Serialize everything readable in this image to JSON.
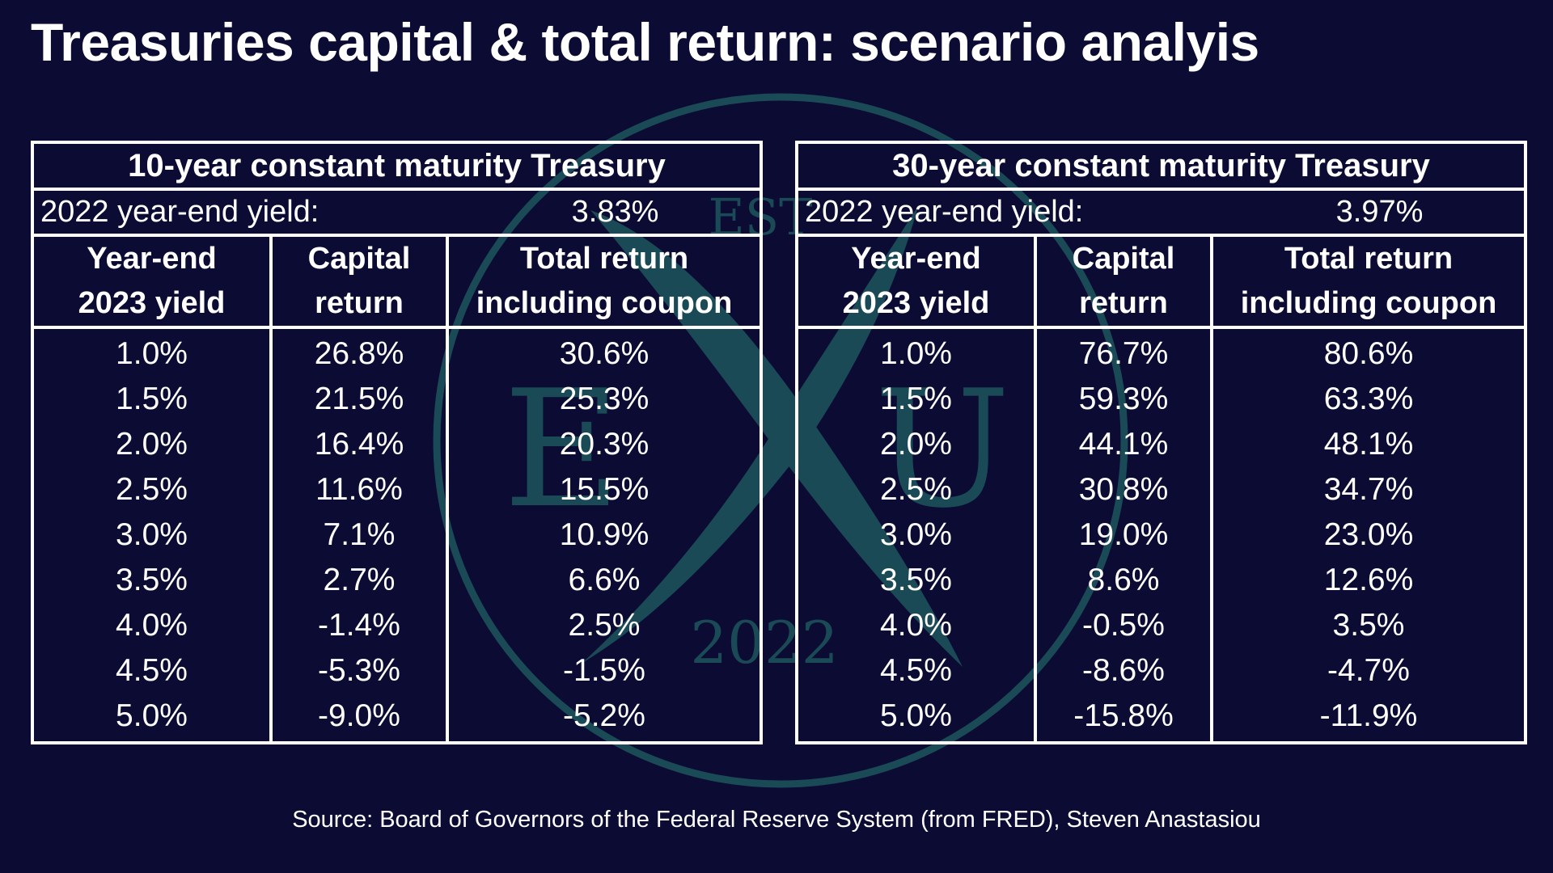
{
  "title": "Treasuries capital & total return: scenario analyis",
  "source": "Source: Board of Governors of the Federal Reserve System (from FRED), Steven Anastasiou",
  "watermark": {
    "est": "EST",
    "left_letter": "E",
    "center_letter": "X",
    "right_letter": "U",
    "year": "2022",
    "color": "#1a4a55"
  },
  "colors": {
    "background": "#0b0b33",
    "text": "#ffffff",
    "border": "#ffffff"
  },
  "tables": [
    {
      "heading": "10-year constant maturity Treasury",
      "yield_label": "2022 year-end yield:",
      "yield_value": "3.83%",
      "columns": [
        {
          "line1": "Year-end",
          "line2": "2023 yield"
        },
        {
          "line1": "Capital",
          "line2": "return"
        },
        {
          "line1": "Total return",
          "line2": "including coupon"
        }
      ],
      "rows": [
        [
          "1.0%",
          "26.8%",
          "30.6%"
        ],
        [
          "1.5%",
          "21.5%",
          "25.3%"
        ],
        [
          "2.0%",
          "16.4%",
          "20.3%"
        ],
        [
          "2.5%",
          "11.6%",
          "15.5%"
        ],
        [
          "3.0%",
          "7.1%",
          "10.9%"
        ],
        [
          "3.5%",
          "2.7%",
          "6.6%"
        ],
        [
          "4.0%",
          "-1.4%",
          "2.5%"
        ],
        [
          "4.5%",
          "-5.3%",
          "-1.5%"
        ],
        [
          "5.0%",
          "-9.0%",
          "-5.2%"
        ]
      ]
    },
    {
      "heading": "30-year constant maturity Treasury",
      "yield_label": "2022 year-end yield:",
      "yield_value": "3.97%",
      "columns": [
        {
          "line1": "Year-end",
          "line2": "2023 yield"
        },
        {
          "line1": "Capital",
          "line2": "return"
        },
        {
          "line1": "Total return",
          "line2": "including coupon"
        }
      ],
      "rows": [
        [
          "1.0%",
          "76.7%",
          "80.6%"
        ],
        [
          "1.5%",
          "59.3%",
          "63.3%"
        ],
        [
          "2.0%",
          "44.1%",
          "48.1%"
        ],
        [
          "2.5%",
          "30.8%",
          "34.7%"
        ],
        [
          "3.0%",
          "19.0%",
          "23.0%"
        ],
        [
          "3.5%",
          "8.6%",
          "12.6%"
        ],
        [
          "4.0%",
          "-0.5%",
          "3.5%"
        ],
        [
          "4.5%",
          "-8.6%",
          "-4.7%"
        ],
        [
          "5.0%",
          "-15.8%",
          "-11.9%"
        ]
      ]
    }
  ]
}
